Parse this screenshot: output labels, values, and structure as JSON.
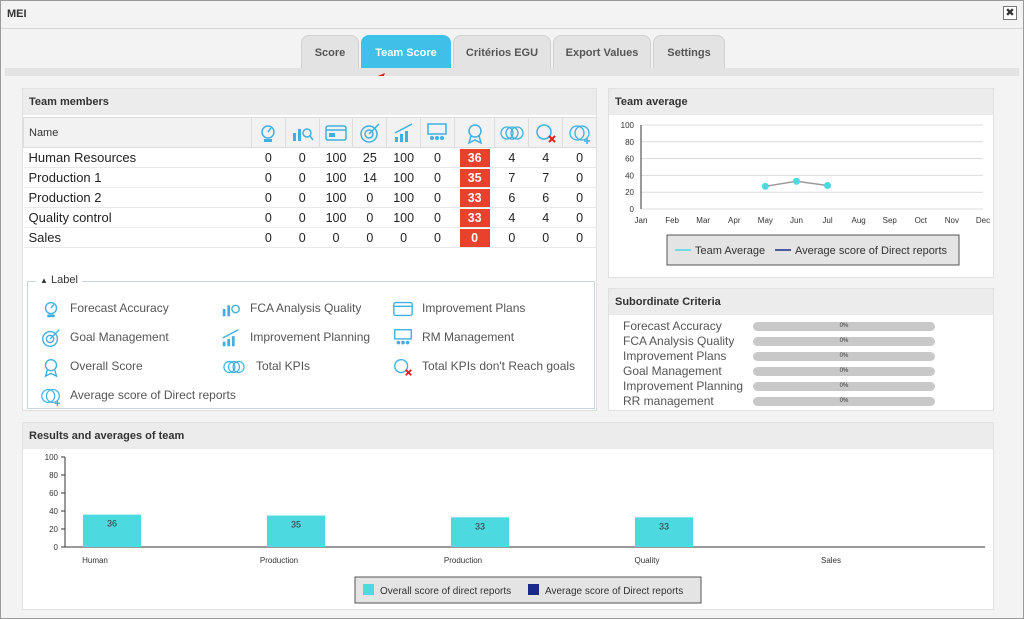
{
  "window": {
    "title": "MEI",
    "close_label": "✖"
  },
  "tabs": [
    {
      "label": "Score",
      "active": false
    },
    {
      "label": "Team Score",
      "active": true
    },
    {
      "label": "Critérios EGU",
      "active": false
    },
    {
      "label": "Export Values",
      "active": false
    },
    {
      "label": "Settings",
      "active": false
    }
  ],
  "team_members": {
    "title": "Team members",
    "name_header": "Name",
    "column_icons": [
      "forecast-accuracy-icon",
      "fca-analysis-quality-icon",
      "improvement-plans-icon",
      "goal-management-icon",
      "improvement-planning-icon",
      "rm-management-icon",
      "overall-score-icon",
      "total-kpis-icon",
      "kpis-not-reach-goals-icon",
      "average-score-direct-reports-icon"
    ],
    "rows": [
      {
        "name": "Human Resources",
        "values": [
          "0",
          "0",
          "100",
          "25",
          "100",
          "0",
          "36",
          "4",
          "4",
          "0"
        ]
      },
      {
        "name": "Production 1",
        "values": [
          "0",
          "0",
          "100",
          "14",
          "100",
          "0",
          "35",
          "7",
          "7",
          "0"
        ]
      },
      {
        "name": "Production 2",
        "values": [
          "0",
          "0",
          "100",
          "0",
          "100",
          "0",
          "33",
          "6",
          "6",
          "0"
        ]
      },
      {
        "name": "Quality control",
        "values": [
          "0",
          "0",
          "100",
          "0",
          "100",
          "0",
          "33",
          "4",
          "4",
          "0"
        ]
      },
      {
        "name": "Sales",
        "values": [
          "0",
          "0",
          "0",
          "0",
          "0",
          "0",
          "0",
          "0",
          "0",
          "0"
        ]
      }
    ]
  },
  "label_box": {
    "title": "Label",
    "toggle": "▲",
    "items": {
      "forecast": "Forecast Accuracy",
      "fca": "FCA Analysis Quality",
      "improvement_plans": "Improvement Plans",
      "goal": "Goal Management",
      "improvement_planning": "Improvement Planning",
      "rm": "RM Management",
      "overall": "Overall Score",
      "total_kpis": "Total KPIs",
      "kpis_not_reach": "Total KPIs don't Reach goals",
      "avg_direct": "Average score of Direct reports"
    }
  },
  "team_average": {
    "title": "Team average",
    "legend": [
      "Team Average",
      "Average score of Direct reports"
    ]
  },
  "subordinate": {
    "title": "Subordinate Criteria",
    "rows": [
      {
        "label": "Forecast Accuracy",
        "value": "0%"
      },
      {
        "label": "FCA Analysis Quality",
        "value": "0%"
      },
      {
        "label": "Improvement Plans",
        "value": "0%"
      },
      {
        "label": "Goal Management",
        "value": "0%"
      },
      {
        "label": "Improvement Planning",
        "value": "0%"
      },
      {
        "label": "RR management",
        "value": "0%"
      }
    ]
  },
  "results": {
    "title": "Results and averages of team",
    "legend": [
      "Overall score of direct reports",
      "Average score of Direct reports"
    ]
  },
  "colors": {
    "accent": "#3fc0e8",
    "score_red": "#e8412c",
    "bar": "#4dd9e0",
    "navy": "#1a2a8a"
  },
  "chart_data": [
    {
      "type": "line",
      "x": [
        "Jan",
        "Feb",
        "Mar",
        "Apr",
        "May",
        "Jun",
        "Jul",
        "Aug",
        "Sep",
        "Oct",
        "Nov",
        "Dec"
      ],
      "series": [
        {
          "name": "Team Average",
          "values": [
            null,
            null,
            null,
            null,
            27,
            33,
            28,
            null,
            null,
            null,
            null,
            null
          ],
          "color": "#4dd9e0"
        },
        {
          "name": "Average score of Direct reports",
          "values": [
            null,
            null,
            null,
            null,
            null,
            null,
            null,
            null,
            null,
            null,
            null,
            null
          ],
          "color": "#1a2a8a"
        }
      ],
      "yticks": [
        "0",
        "20",
        "40",
        "60",
        "80",
        "100"
      ],
      "ylim": [
        0,
        100
      ],
      "grid": true,
      "legend": "bottom"
    },
    {
      "type": "bar",
      "categories": [
        "Human",
        "Production",
        "Production",
        "Quality",
        "Sales"
      ],
      "series": [
        {
          "name": "Overall score of direct reports",
          "values": [
            36,
            35,
            33,
            33,
            null
          ],
          "color": "#4dd9e0"
        },
        {
          "name": "Average score of Direct reports",
          "values": [
            null,
            null,
            null,
            null,
            null
          ],
          "color": "#1a2a8a"
        }
      ],
      "yticks": [
        "0",
        "20",
        "40",
        "60",
        "80",
        "100"
      ],
      "ylim": [
        0,
        100
      ],
      "grid": false,
      "legend": "bottom"
    }
  ]
}
